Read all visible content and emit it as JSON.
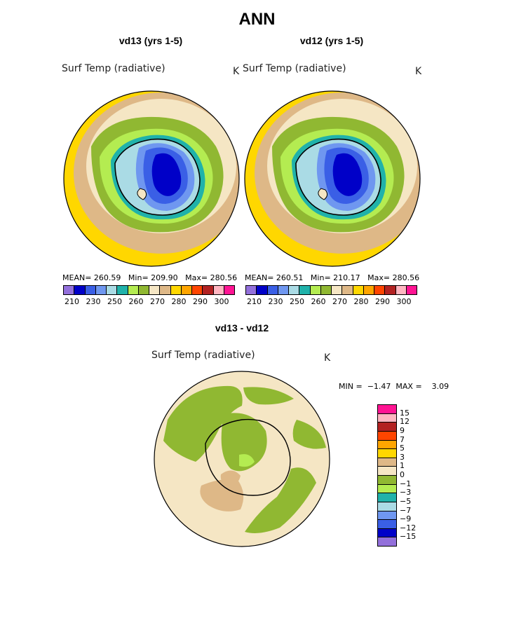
{
  "title": "ANN",
  "panels": [
    {
      "title": "vd13 (yrs 1-5)",
      "variable": "Surf Temp (radiative)",
      "units": "K",
      "stats": {
        "mean_label": "MEAN=",
        "mean": "260.59",
        "min_label": "Min=",
        "min": "209.90",
        "max_label": "Max=",
        "max": "280.56"
      }
    },
    {
      "title": "vd12 (yrs 1-5)",
      "variable": "Surf Temp (radiative)",
      "units": "K",
      "stats": {
        "mean_label": "MEAN=",
        "mean": "260.51",
        "min_label": "Min=",
        "min": "210.17",
        "max_label": "Max=",
        "max": "280.56"
      }
    }
  ],
  "diff_panel": {
    "title": "vd13 - vd12",
    "variable": "Surf Temp (radiative)",
    "units": "K",
    "stats": {
      "min_label": "MIN =",
      "min": "−1.47",
      "max_label": "MAX =",
      "max": "3.09"
    }
  },
  "colors": {
    "temp_levels": [
      "#9370db",
      "#0000c8",
      "#3a5fe6",
      "#6f97f0",
      "#aadbe5",
      "#20b2aa",
      "#b4ec51",
      "#90b832",
      "#f5e6c4",
      "#deb887",
      "#ffd700",
      "#ffa500",
      "#ff4500",
      "#b22222",
      "#ffb6c1",
      "#ff1493"
    ],
    "diff_levels": [
      "#ff1493",
      "#ffb6c1",
      "#b22222",
      "#ff4500",
      "#ffa500",
      "#ffd700",
      "#deb887",
      "#f5e6c4",
      "#90b832",
      "#b4ec51",
      "#20b2aa",
      "#aadbe5",
      "#6f97f0",
      "#3a5fe6",
      "#0000c8",
      "#9370db"
    ]
  },
  "chart_data": [
    {
      "type": "heatmap",
      "projection": "south polar stereographic",
      "title": "vd13 (yrs 1-5)",
      "variable": "Surf Temp (radiative)",
      "units": "K",
      "mean": 260.59,
      "min": 209.9,
      "max": 280.56,
      "colorbar_levels": [
        210,
        215,
        220,
        225,
        230,
        235,
        240,
        245,
        250,
        255,
        260,
        265,
        270,
        275,
        280,
        285,
        290,
        295,
        300
      ],
      "colorbar_tick_labels": [
        "210",
        "230",
        "250",
        "260",
        "270",
        "280",
        "290",
        "300"
      ]
    },
    {
      "type": "heatmap",
      "projection": "south polar stereographic",
      "title": "vd12 (yrs 1-5)",
      "variable": "Surf Temp (radiative)",
      "units": "K",
      "mean": 260.51,
      "min": 210.17,
      "max": 280.56,
      "colorbar_levels": [
        210,
        215,
        220,
        225,
        230,
        235,
        240,
        245,
        250,
        255,
        260,
        265,
        270,
        275,
        280,
        285,
        290,
        295,
        300
      ],
      "colorbar_tick_labels": [
        "210",
        "230",
        "250",
        "260",
        "270",
        "280",
        "290",
        "300"
      ]
    },
    {
      "type": "heatmap",
      "projection": "south polar stereographic",
      "title": "vd13 - vd12",
      "variable": "Surf Temp (radiative)",
      "units": "K",
      "min": -1.47,
      "max": 3.09,
      "colorbar_tick_labels": [
        "15",
        "12",
        "9",
        "7",
        "5",
        "3",
        "1",
        "0",
        "−1",
        "−3",
        "−5",
        "−7",
        "−9",
        "−12",
        "−15"
      ]
    }
  ]
}
